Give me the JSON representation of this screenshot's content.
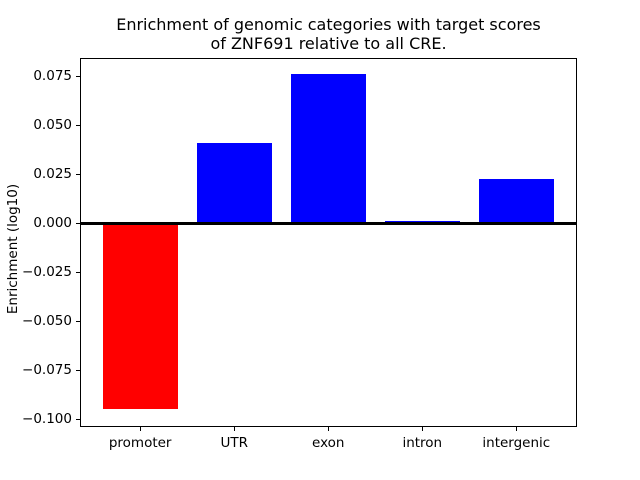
{
  "title": {
    "line1": "Enrichment of genomic categories with target scores",
    "line2": "of ZNF691 relative to all CRE."
  },
  "chart_data": {
    "type": "bar",
    "title": "Enrichment of genomic categories with target scores of ZNF691 relative to all CRE.",
    "categories": [
      "promoter",
      "UTR",
      "exon",
      "intron",
      "intergenic"
    ],
    "values": [
      -0.095,
      0.041,
      0.076,
      0.001,
      0.0225
    ],
    "bar_colors": [
      "#ff0000",
      "#0000ff",
      "#0000ff",
      "#0000ff",
      "#0000ff"
    ],
    "xlabel": "",
    "ylabel": "Enrichment (log10)",
    "ylim": [
      -0.104,
      0.0845
    ],
    "xlim": [
      -0.64,
      4.64
    ],
    "bar_width_fraction": 0.8,
    "yticks": [
      0.075,
      0.05,
      0.025,
      0.0,
      -0.025,
      -0.05,
      -0.075,
      -0.1
    ],
    "ytick_labels": [
      "0.075",
      "0.050",
      "0.025",
      "0.000",
      "−0.025",
      "−0.050",
      "−0.075",
      "−0.100"
    ],
    "grid": false,
    "legend": false,
    "zero_line": {
      "y": 0,
      "color": "#000000"
    },
    "axis_color": "#000000",
    "background_color": "#ffffff"
  }
}
